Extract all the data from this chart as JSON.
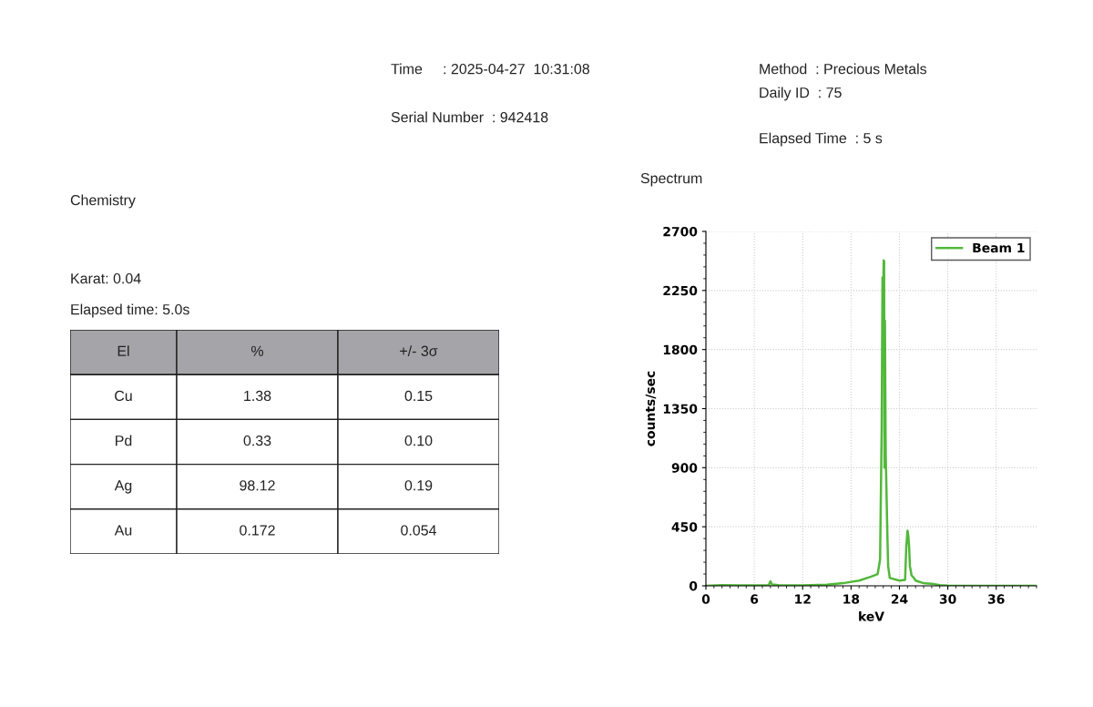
{
  "chart_data": [
    {
      "type": "other",
      "annotations": [
        "Time     : 2025-04-27  10:31:08",
        "Serial Number  : 942418",
        "Method  : Precious Metals",
        "Daily ID  : 75",
        "Elapsed Time  : 5 s",
        "Chemistry",
        "Karat: 0.04",
        "Elapsed time: 5.0s"
      ],
      "categories": [
        "El",
        "%",
        "+/- 3σ"
      ],
      "y_categories": [
        "Cu",
        "Pd",
        "Ag",
        "Au"
      ],
      "cell_labels": [
        [
          "1.38",
          "0.15"
        ],
        [
          "0.33",
          "0.10"
        ],
        [
          "98.12",
          "0.19"
        ],
        [
          "0.172",
          "0.054"
        ]
      ]
    },
    {
      "type": "line",
      "title": "Spectrum",
      "xlabel": "keV",
      "ylabel": "counts/sec",
      "xlim": [
        0,
        41
      ],
      "xticks": [
        0,
        6,
        12,
        18,
        24,
        30,
        36
      ],
      "ylim": [
        0,
        2700
      ],
      "yticks": [
        0,
        450,
        900,
        1350,
        1800,
        2250,
        2700
      ],
      "grid": true,
      "legend": "top right",
      "series": [
        {
          "name": "Beam 1",
          "color": "#52b83a",
          "x": [
            0,
            2,
            4,
            7.8,
            8.0,
            8.2,
            9,
            12,
            15,
            17,
            19,
            20.5,
            21.3,
            21.6,
            21.8,
            21.9,
            22.0,
            22.05,
            22.1,
            22.15,
            22.2,
            22.3,
            22.5,
            22.6,
            22.8,
            24,
            24.7,
            24.85,
            25.0,
            25.1,
            25.2,
            25.3,
            25.5,
            25.8,
            26,
            27,
            28,
            29,
            30,
            34,
            41
          ],
          "values": [
            0,
            5,
            3,
            5,
            35,
            10,
            5,
            3,
            8,
            20,
            40,
            70,
            90,
            200,
            1200,
            2350,
            2300,
            2480,
            2470,
            900,
            2020,
            1000,
            400,
            150,
            60,
            40,
            45,
            300,
            420,
            380,
            300,
            150,
            80,
            60,
            40,
            20,
            15,
            5,
            2,
            0,
            0
          ]
        }
      ]
    }
  ]
}
